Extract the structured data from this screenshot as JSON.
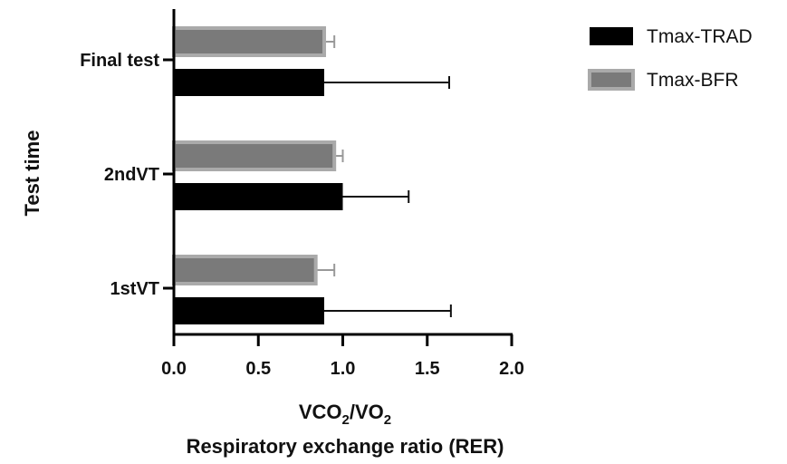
{
  "chart_data": {
    "type": "bar",
    "orientation": "horizontal",
    "categories": [
      "Final test",
      "2ndVT",
      "1stVT"
    ],
    "series": [
      {
        "name": "Tmax-BFR",
        "color": "#7a7a7a",
        "edge_color": "#aaaaaa",
        "values": [
          0.89,
          0.95,
          0.84
        ],
        "errors": [
          0.06,
          0.05,
          0.11
        ]
      },
      {
        "name": "Tmax-TRAD",
        "color": "#000000",
        "edge_color": "#000000",
        "values": [
          0.89,
          1.0,
          0.89
        ],
        "errors": [
          0.74,
          0.39,
          0.75
        ]
      }
    ],
    "xlim": [
      0,
      2.0
    ],
    "xticks": [
      "0.0",
      "0.5",
      "1.0",
      "1.5",
      "2.0"
    ],
    "xticks_values": [
      0,
      0.5,
      1.0,
      1.5,
      2.0
    ],
    "ylabel": "Test time",
    "xlabel_line1_main": "VCO",
    "xlabel_line1_sub1": "2",
    "xlabel_line1_mid": "/VO",
    "xlabel_line1_sub2": "2",
    "xlabel_line2": "Respiratory exchange ratio (RER)",
    "legend_position": "top-right",
    "grid": false
  }
}
